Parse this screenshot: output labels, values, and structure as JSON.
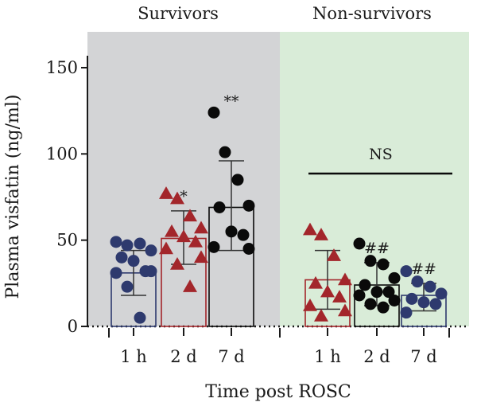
{
  "chart_data": {
    "type": "scatter",
    "ylabel": "Plasma visfatin (ng/ml)",
    "xlabel": "Time post ROSC",
    "ylim": [
      0,
      150
    ],
    "yticks": [
      "0",
      "50",
      "100",
      "150"
    ],
    "groups": [
      {
        "title": "Survivors",
        "background": "#d3d4d6"
      },
      {
        "title": "Non-survivors",
        "background": "#d9ecd8"
      }
    ],
    "categories": [
      "1 h",
      "2 d",
      "7 d",
      "1 h",
      "2 d",
      "7 d"
    ],
    "series": [
      {
        "group": 0,
        "category": "1 h",
        "marker": "circle",
        "color": "#2e3a6e",
        "mean": 31,
        "sd_low": 18,
        "sd_high": 44,
        "points": [
          49,
          47,
          48,
          44,
          40,
          38,
          32,
          31,
          32,
          23,
          5
        ]
      },
      {
        "group": 0,
        "category": "2 d",
        "marker": "triangle",
        "color": "#a3262b",
        "mean": 51,
        "sd_low": 36,
        "sd_high": 67,
        "annotation": "*",
        "points": [
          77,
          74,
          64,
          57,
          55,
          52,
          49,
          45,
          40,
          36,
          23
        ]
      },
      {
        "group": 0,
        "category": "7 d",
        "marker": "circle",
        "color": "#0a0a0a",
        "mean": 69,
        "sd_low": 44,
        "sd_high": 96,
        "annotation": "**",
        "points": [
          124,
          101,
          85,
          70,
          69,
          55,
          53,
          46,
          45
        ]
      },
      {
        "group": 1,
        "category": "1 h",
        "marker": "triangle",
        "color": "#a3262b",
        "mean": 27,
        "sd_low": 10,
        "sd_high": 44,
        "points": [
          56,
          53,
          41,
          27,
          25,
          20,
          17,
          12,
          9,
          6
        ]
      },
      {
        "group": 1,
        "category": "2 d",
        "marker": "circle",
        "color": "#0a0a0a",
        "mean": 24,
        "sd_low": 12,
        "sd_high": 37,
        "annotation": "##",
        "points": [
          48,
          38,
          36,
          28,
          24,
          20,
          20,
          18,
          15,
          13,
          11
        ]
      },
      {
        "group": 1,
        "category": "7 d",
        "marker": "circle",
        "color": "#2e3a6e",
        "mean": 18,
        "sd_low": 9,
        "sd_high": 25,
        "annotation": "##",
        "points": [
          32,
          26,
          23,
          19,
          16,
          14,
          13,
          8
        ]
      }
    ],
    "comparison_label": "NS"
  }
}
